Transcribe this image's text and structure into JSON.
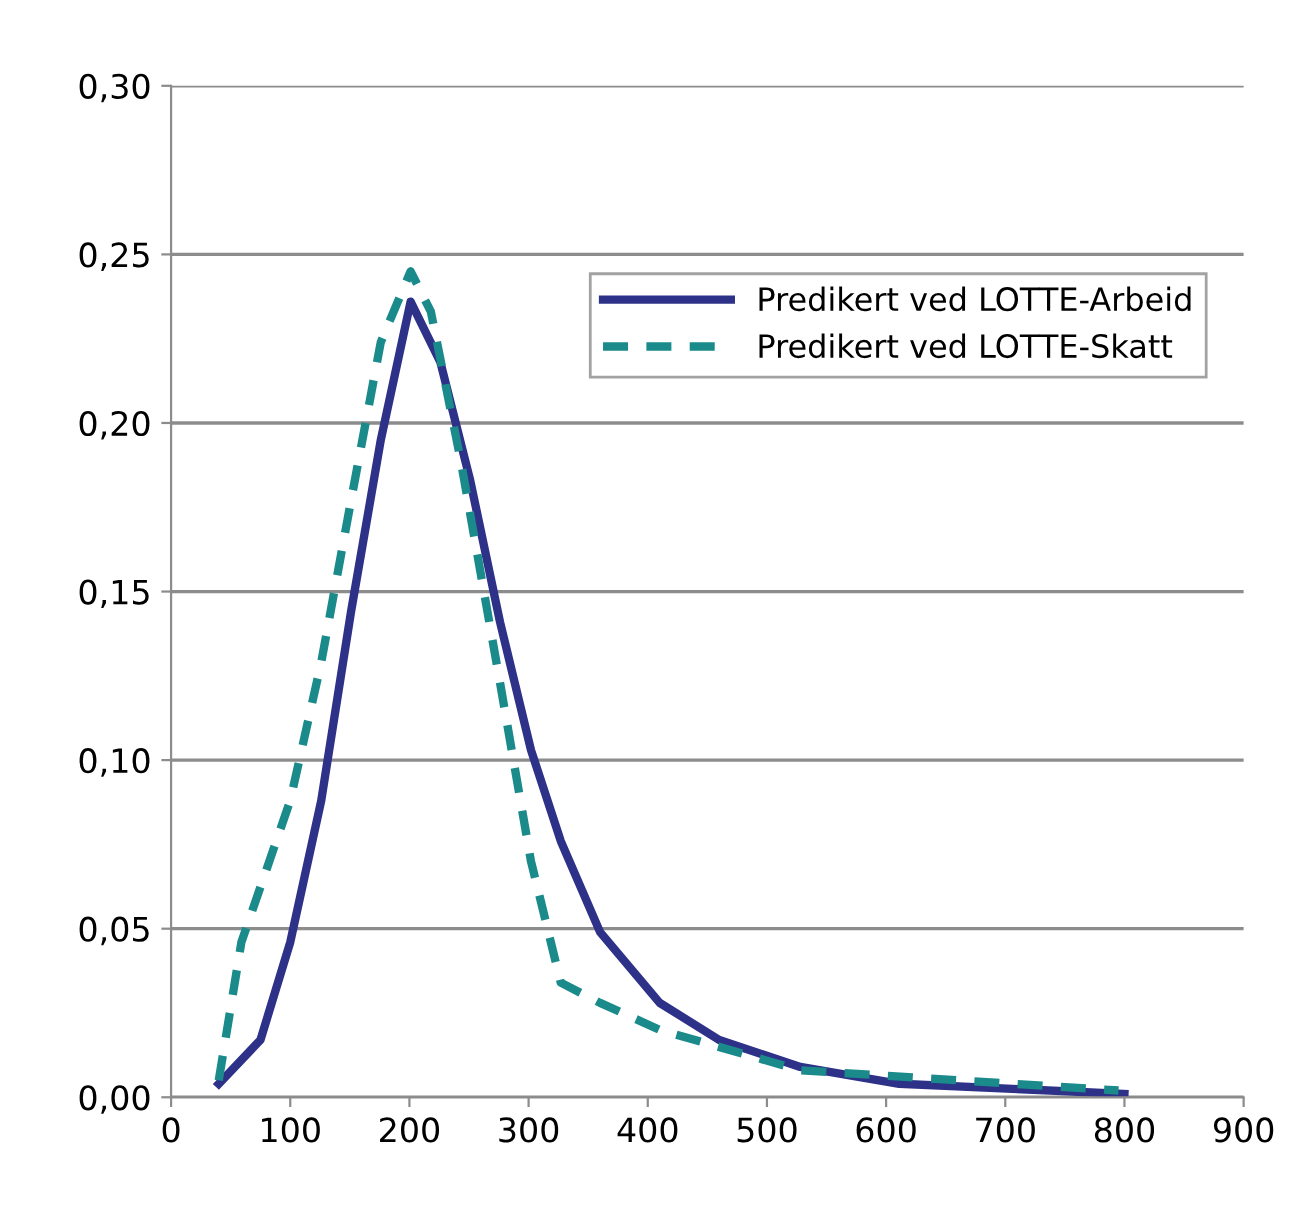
{
  "chart_data": {
    "type": "line",
    "series": [
      {
        "name": "Predikert ved LOTTE-Arbeid",
        "color": "#2e3188",
        "line_style": "solid",
        "x": [
          40,
          75,
          100,
          126,
          151,
          176,
          201,
          226,
          251,
          276,
          302,
          327,
          360,
          410,
          460,
          528,
          611,
          800
        ],
        "values": [
          0.004,
          0.017,
          0.046,
          0.088,
          0.144,
          0.195,
          0.236,
          0.218,
          0.183,
          0.141,
          0.103,
          0.076,
          0.049,
          0.028,
          0.017,
          0.009,
          0.004,
          0.001
        ]
      },
      {
        "name": "Predikert ved LOTTE-Skatt",
        "color": "#1a8a8a",
        "line_style": "dashed",
        "x": [
          40,
          59,
          100,
          126,
          151,
          176,
          201,
          218,
          243,
          276,
          302,
          327,
          360,
          410,
          528,
          795
        ],
        "values": [
          0.005,
          0.046,
          0.088,
          0.129,
          0.177,
          0.224,
          0.245,
          0.233,
          0.189,
          0.123,
          0.07,
          0.034,
          0.028,
          0.02,
          0.008,
          0.002
        ]
      }
    ],
    "xlim": [
      0,
      900
    ],
    "xticks": [
      0,
      100,
      200,
      300,
      400,
      500,
      600,
      700,
      800,
      900
    ],
    "ylim": [
      0,
      0.3
    ],
    "yticks": [
      {
        "value": 0,
        "label": "0,00"
      },
      {
        "value": 0.05,
        "label": "0,05"
      },
      {
        "value": 0.1,
        "label": "0,10"
      },
      {
        "value": 0.15,
        "label": "0,15"
      },
      {
        "value": 0.2,
        "label": "0,20"
      },
      {
        "value": 0.25,
        "label": "0,25"
      },
      {
        "value": 0.3,
        "label": "0,30"
      }
    ],
    "grid": "y",
    "legend": "top right",
    "marker": "none"
  }
}
